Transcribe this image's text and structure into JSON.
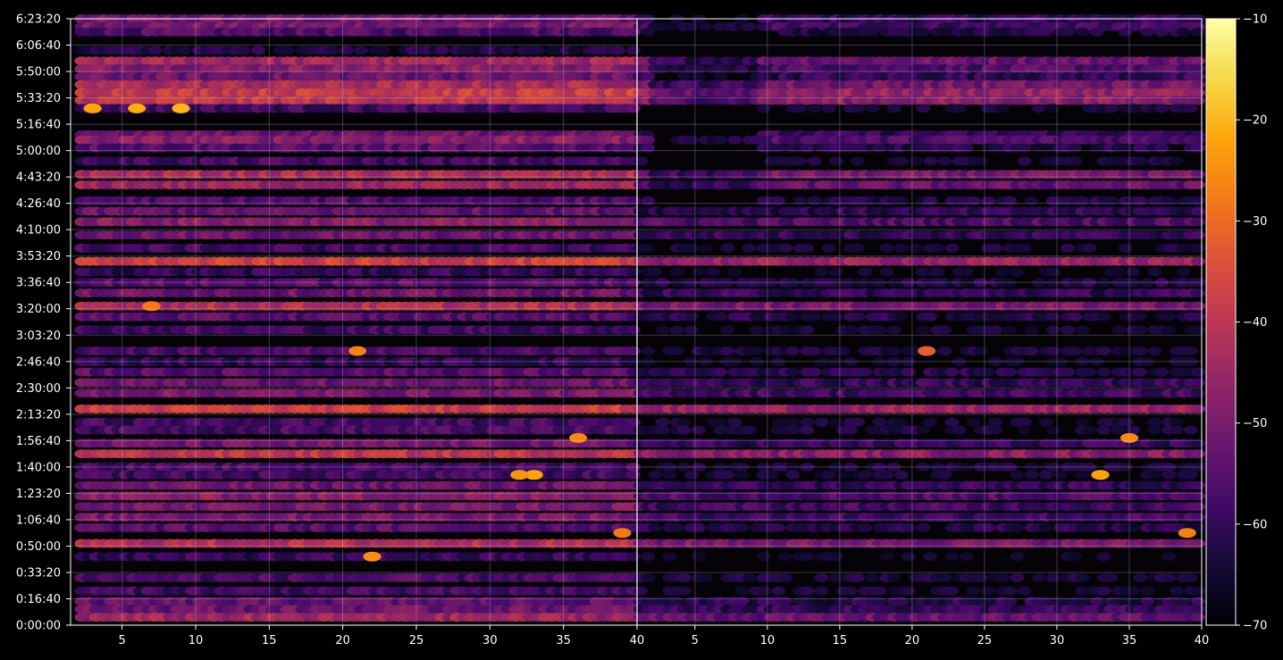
{
  "chart_data": {
    "type": "heatmap",
    "title": "",
    "xlabel": "",
    "ylabel": "",
    "panels": [
      {
        "name": "",
        "xlim": [
          1.5,
          40
        ],
        "xticks": [
          5,
          10,
          15,
          20,
          25,
          30,
          35,
          40
        ],
        "tick_labels": [
          "5",
          "10",
          "15",
          "20",
          "25",
          "30",
          "35",
          "40"
        ]
      },
      {
        "name": "",
        "xlim": [
          1,
          40
        ],
        "xticks": [
          5,
          10,
          15,
          20,
          25,
          30,
          35,
          40
        ],
        "tick_labels": [
          "5",
          "10",
          "15",
          "20",
          "25",
          "30",
          "35",
          "40"
        ]
      }
    ],
    "ylim_seconds": [
      0,
      23000
    ],
    "yticks_seconds": [
      0,
      1000,
      2000,
      3000,
      4000,
      5000,
      6000,
      7000,
      8000,
      9000,
      10000,
      11000,
      12000,
      13000,
      14000,
      15000,
      16000,
      17000,
      18000,
      19000,
      20000,
      21000,
      22000,
      23000
    ],
    "ytick_labels": [
      "0:00:00",
      "0:16:40",
      "0:33:20",
      "0:50:00",
      "1:06:40",
      "1:23:20",
      "1:40:00",
      "1:56:40",
      "2:13:20",
      "2:30:00",
      "2:46:40",
      "3:03:20",
      "3:20:00",
      "3:36:40",
      "3:53:20",
      "4:10:00",
      "4:26:40",
      "4:43:20",
      "5:00:00",
      "5:16:40",
      "5:33:20",
      "5:50:00",
      "6:06:40",
      "6:23:20"
    ],
    "colorbar": {
      "colormap": "inferno",
      "range": [
        -70,
        -10
      ],
      "ticks": [
        -10,
        -20,
        -30,
        -40,
        -50,
        -60,
        -70
      ],
      "tick_labels": [
        "−10",
        "−20",
        "−30",
        "−40",
        "−50",
        "−60",
        "−70"
      ]
    },
    "grid": true,
    "bands": [
      {
        "t": 23000,
        "level": -52
      },
      {
        "t": 22700,
        "level": -50
      },
      {
        "t": 22500,
        "level": -56
      },
      {
        "t": 21800,
        "level": -63
      },
      {
        "t": 21400,
        "level": -44
      },
      {
        "t": 21100,
        "level": -48
      },
      {
        "t": 20800,
        "level": -52
      },
      {
        "t": 20500,
        "level": -43
      },
      {
        "t": 20200,
        "level": -38
      },
      {
        "t": 19900,
        "level": -40
      },
      {
        "t": 19600,
        "level": -58
      },
      {
        "t": 18600,
        "level": -52
      },
      {
        "t": 18400,
        "level": -48
      },
      {
        "t": 18100,
        "level": -55
      },
      {
        "t": 17600,
        "level": -58
      },
      {
        "t": 17100,
        "level": -43
      },
      {
        "t": 16700,
        "level": -45
      },
      {
        "t": 16100,
        "level": -56
      },
      {
        "t": 15700,
        "level": -53
      },
      {
        "t": 15300,
        "level": -48
      },
      {
        "t": 14800,
        "level": -52
      },
      {
        "t": 14300,
        "level": -58
      },
      {
        "t": 13800,
        "level": -38
      },
      {
        "t": 13400,
        "level": -60
      },
      {
        "t": 13000,
        "level": -55
      },
      {
        "t": 12600,
        "level": -52
      },
      {
        "t": 12100,
        "level": -42
      },
      {
        "t": 11700,
        "level": -55
      },
      {
        "t": 11200,
        "level": -58
      },
      {
        "t": 10400,
        "level": -57
      },
      {
        "t": 10000,
        "level": -60
      },
      {
        "t": 9600,
        "level": -55
      },
      {
        "t": 9200,
        "level": -52
      },
      {
        "t": 8800,
        "level": -50
      },
      {
        "t": 8200,
        "level": -38
      },
      {
        "t": 7700,
        "level": -58
      },
      {
        "t": 7400,
        "level": -57
      },
      {
        "t": 6900,
        "level": -52
      },
      {
        "t": 6500,
        "level": -40
      },
      {
        "t": 6000,
        "level": -57
      },
      {
        "t": 5700,
        "level": -58
      },
      {
        "t": 5300,
        "level": -52
      },
      {
        "t": 4900,
        "level": -48
      },
      {
        "t": 4500,
        "level": -50
      },
      {
        "t": 4100,
        "level": -50
      },
      {
        "t": 3700,
        "level": -55
      },
      {
        "t": 3100,
        "level": -42
      },
      {
        "t": 2600,
        "level": -60
      },
      {
        "t": 1800,
        "level": -57
      },
      {
        "t": 1300,
        "level": -58
      },
      {
        "t": 900,
        "level": -54
      },
      {
        "t": 600,
        "level": -52
      },
      {
        "t": 300,
        "level": -45
      }
    ],
    "hotspots": [
      {
        "panel": 1,
        "x": 3,
        "t": 19600,
        "level": -22
      },
      {
        "panel": 1,
        "x": 6,
        "t": 19600,
        "level": -21
      },
      {
        "panel": 1,
        "x": 9,
        "t": 19600,
        "level": -20
      },
      {
        "panel": 1,
        "x": 7,
        "t": 12100,
        "level": -28
      },
      {
        "panel": 1,
        "x": 21,
        "t": 10400,
        "level": -27
      },
      {
        "panel": 1,
        "x": 33,
        "t": 5700,
        "level": -22
      },
      {
        "panel": 1,
        "x": 32,
        "t": 5700,
        "level": -24
      },
      {
        "panel": 1,
        "x": 36,
        "t": 7100,
        "level": -26
      },
      {
        "panel": 1,
        "x": 22,
        "t": 2600,
        "level": -25
      },
      {
        "panel": 1,
        "x": 39,
        "t": 3500,
        "level": -28
      },
      {
        "panel": 2,
        "x": 21,
        "t": 10400,
        "level": -32
      },
      {
        "panel": 2,
        "x": 33,
        "t": 5700,
        "level": -22
      },
      {
        "panel": 2,
        "x": 35,
        "t": 7100,
        "level": -26
      },
      {
        "panel": 2,
        "x": 39,
        "t": 3500,
        "level": -27
      }
    ]
  }
}
